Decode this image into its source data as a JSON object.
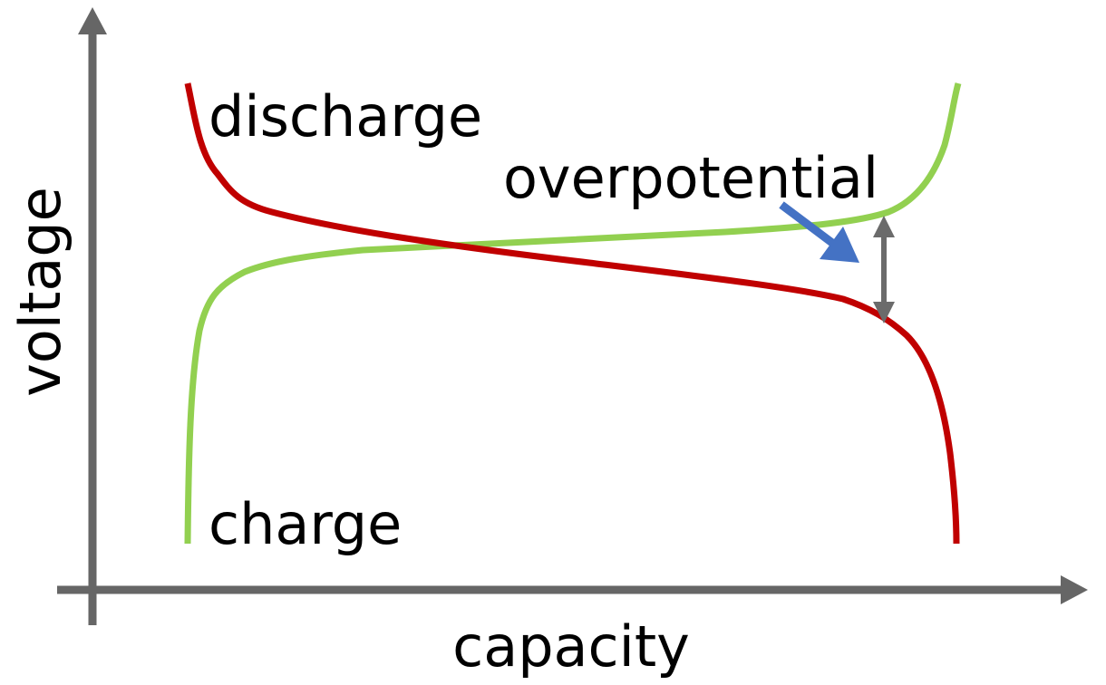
{
  "axes": {
    "y_label": "voltage",
    "x_label": "capacity"
  },
  "curves": {
    "discharge": "discharge",
    "charge": "charge"
  },
  "annotation": "overpotential"
}
